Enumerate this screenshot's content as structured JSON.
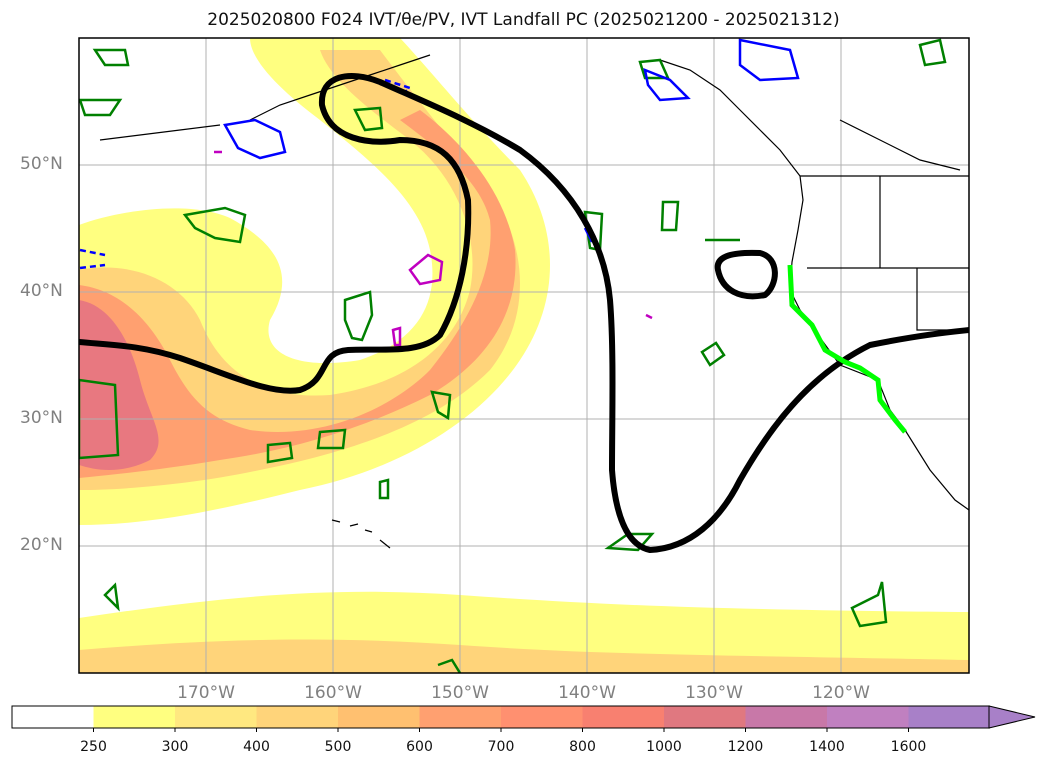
{
  "title": "2025020800 F024 IVT/θe/PV, IVT Landfall PC (2025021200 - 2025021312)",
  "map": {
    "lon_range": [
      -180,
      -110
    ],
    "lat_range": [
      10,
      60
    ],
    "lat_labels": [
      "50°N",
      "40°N",
      "30°N",
      "20°N"
    ],
    "lon_labels": [
      "170°W",
      "160°W",
      "150°W",
      "140°W",
      "130°W",
      "120°W"
    ],
    "colors": {
      "pv_contour": "#008000",
      "theta_e_contour": "#0000ff",
      "magenta_contour": "#c000c0",
      "landfall_line": "#00ff00",
      "pc_contour": "#000000",
      "gridlines": "#b0b0b0"
    }
  },
  "colorbar": {
    "levels": [
      "250",
      "300",
      "400",
      "500",
      "600",
      "700",
      "800",
      "1000",
      "1200",
      "1400",
      "1600"
    ],
    "colors": [
      "#ffffff",
      "#ffff80",
      "#ffe880",
      "#ffd47a",
      "#ffc070",
      "#ffa070",
      "#ff9070",
      "#f88070",
      "#e07880",
      "#c878a8",
      "#c080c0",
      "#a880c8"
    ],
    "extend": "max"
  }
}
